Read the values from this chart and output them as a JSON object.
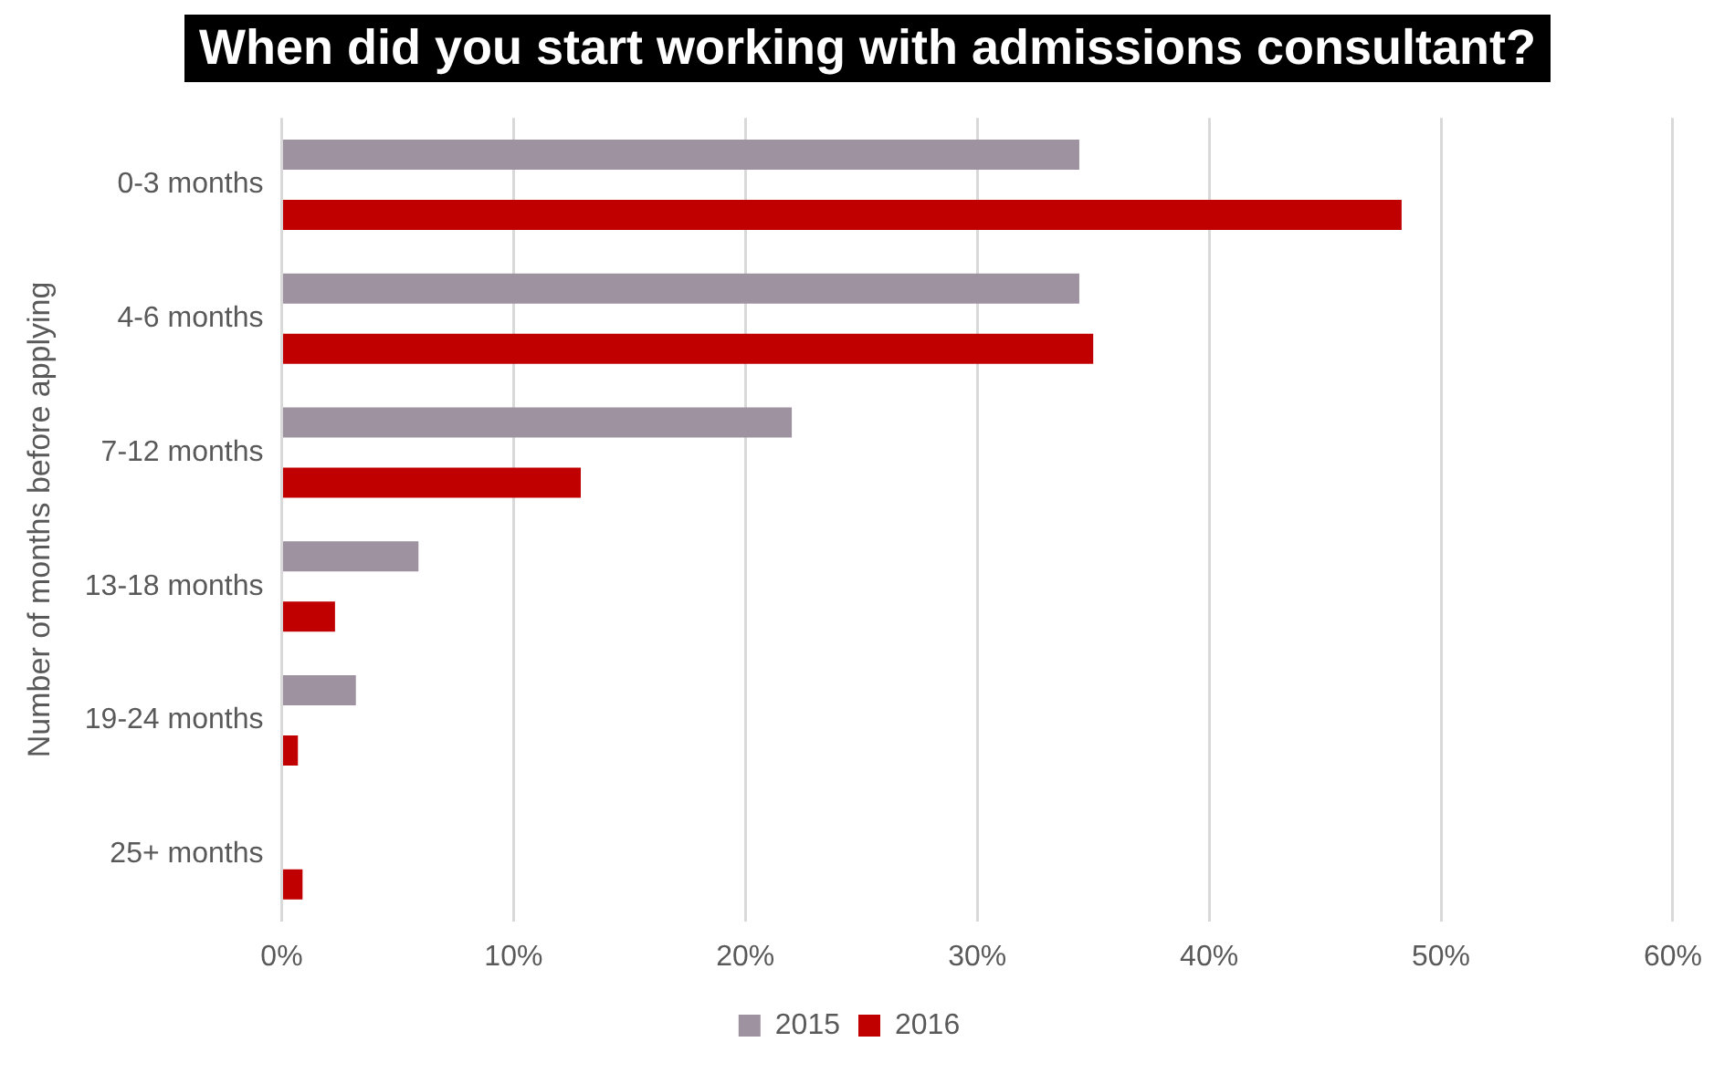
{
  "chart_data": {
    "type": "bar",
    "orientation": "horizontal",
    "title": "When did you start working with admissions consultant?",
    "ylabel": "Number of months before applying",
    "categories": [
      "0-3 months",
      "4-6 months",
      "7-12 months",
      "13-18 months",
      "19-24 months",
      "25+ months"
    ],
    "series": [
      {
        "name": "2015",
        "color": "#9e91a0",
        "values": [
          34.4,
          34.4,
          22.0,
          5.9,
          3.2,
          null
        ]
      },
      {
        "name": "2016",
        "color": "#c00000",
        "values": [
          48.3,
          35.0,
          12.9,
          2.3,
          0.7,
          0.9
        ]
      }
    ],
    "xlim": [
      0,
      60
    ],
    "xticks": [
      {
        "value": 0,
        "label": "0%"
      },
      {
        "value": 10,
        "label": "10%"
      },
      {
        "value": 20,
        "label": "20%"
      },
      {
        "value": 30,
        "label": "30%"
      },
      {
        "value": 40,
        "label": "40%"
      },
      {
        "value": 50,
        "label": "50%"
      },
      {
        "value": 60,
        "label": "60%"
      }
    ],
    "grid": "x",
    "legend": "bottom"
  }
}
